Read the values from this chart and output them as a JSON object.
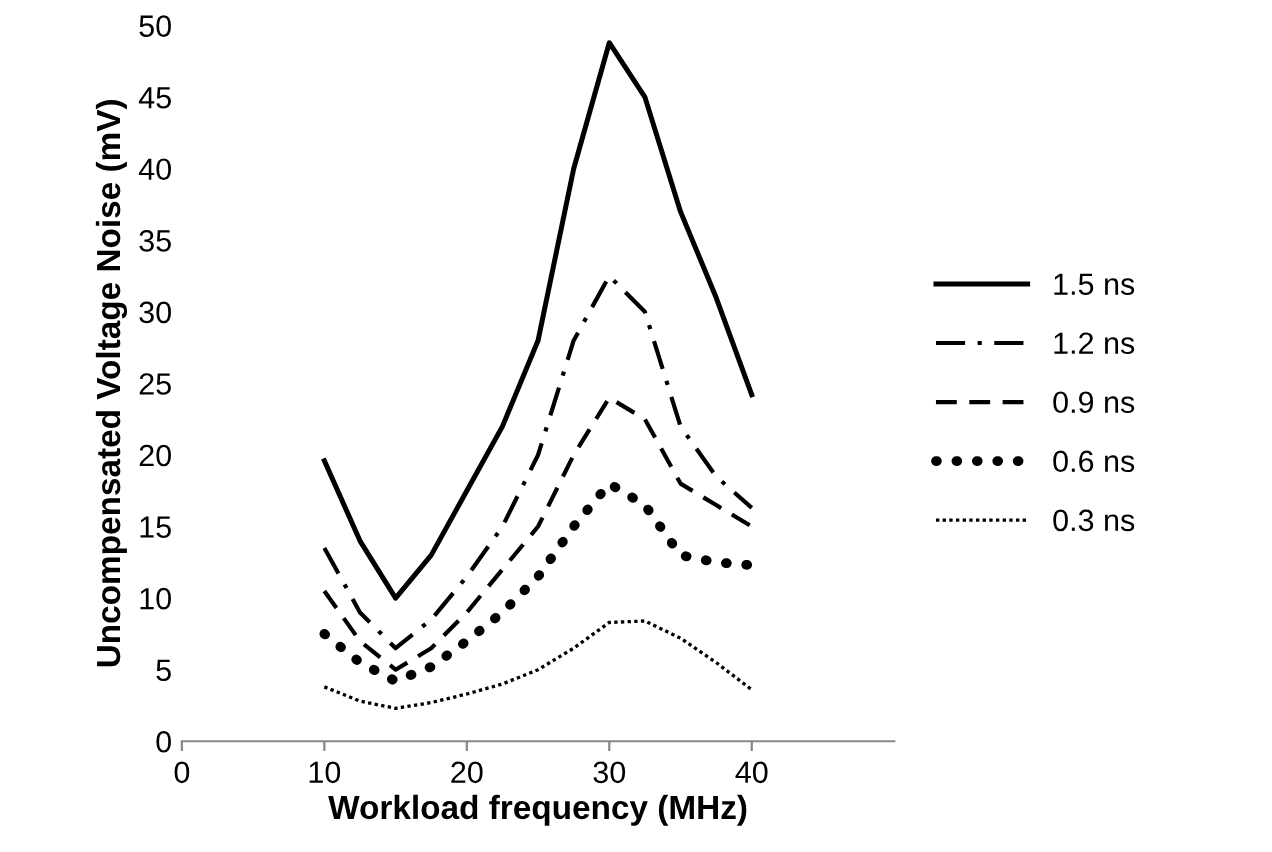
{
  "chart_data": {
    "type": "line",
    "xlabel": "Workload frequency (MHz)",
    "ylabel": "Uncompensated Voltage Noise (mV)",
    "x": [
      10,
      12.5,
      15,
      17.5,
      20,
      22.5,
      25,
      27.5,
      30,
      32.5,
      35,
      37.5,
      40
    ],
    "xlim": [
      0,
      50
    ],
    "xticks": [
      0,
      10,
      20,
      30,
      40
    ],
    "ylim": [
      0,
      50
    ],
    "yticks": [
      0,
      5,
      10,
      15,
      20,
      25,
      30,
      35,
      40,
      45,
      50
    ],
    "grid": false,
    "legend": "right",
    "marker": "none",
    "series": [
      {
        "name": "1.5 ns",
        "color": "#000000",
        "line_style": "solid",
        "values": [
          19.6,
          14,
          10,
          13,
          17.5,
          22,
          28,
          40,
          48.8,
          45,
          37,
          31,
          24.2
        ]
      },
      {
        "name": "1.2 ns",
        "color": "#000000",
        "line_style": "dashdot",
        "values": [
          13.5,
          9,
          6.5,
          8.5,
          11.5,
          15,
          20,
          28,
          32.5,
          30,
          22,
          18.5,
          16.3
        ]
      },
      {
        "name": "0.9 ns",
        "color": "#000000",
        "line_style": "dashed",
        "values": [
          10.5,
          7,
          5,
          6.5,
          9,
          12,
          15,
          20,
          24,
          22.5,
          18,
          16.5,
          15
        ]
      },
      {
        "name": "0.6 ns",
        "color": "#000000",
        "line_style": "bigdots",
        "values": [
          7.5,
          5.5,
          4.2,
          5.2,
          7,
          9,
          11.5,
          15,
          18,
          16.5,
          13,
          12.5,
          12.3
        ]
      },
      {
        "name": "0.3 ns",
        "color": "#000000",
        "line_style": "dotted",
        "values": [
          3.8,
          2.8,
          2.3,
          2.7,
          3.3,
          4,
          5,
          6.5,
          8.3,
          8.4,
          7.2,
          5.5,
          3.6
        ]
      }
    ]
  }
}
